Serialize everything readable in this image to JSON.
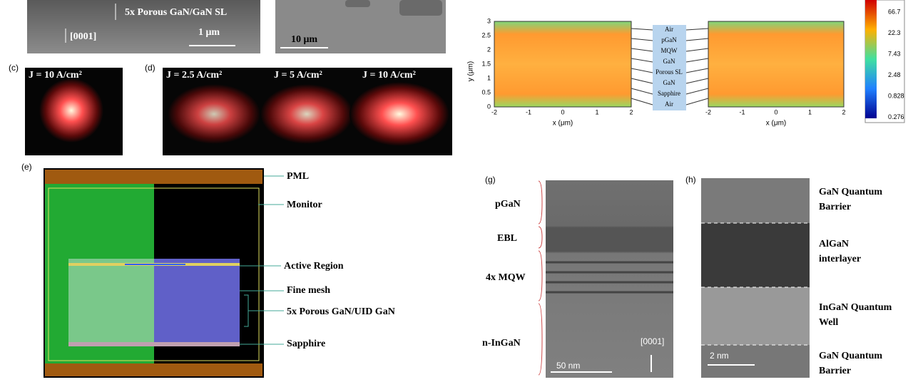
{
  "panel_a": {
    "title": "5x Porous GaN/GaN SL",
    "direction": "[0001]",
    "scale": "1 μm"
  },
  "panel_b": {
    "scale": "10 μm"
  },
  "panel_c": {
    "label": "(c)",
    "current": "J = 10 A/cm²"
  },
  "panel_d": {
    "label": "(d)",
    "currents": [
      "J = 2.5 A/cm²",
      "J = 5 A/cm²",
      "J = 10 A/cm²"
    ]
  },
  "simulation": {
    "y_label": "y (μm)",
    "x_label": "x (μm)",
    "yticks": [
      "3",
      "2.5",
      "2",
      "1.5",
      "1",
      "0.5",
      "0"
    ],
    "xticks": [
      "-2",
      "-1",
      "0",
      "1",
      "2"
    ],
    "layers": [
      "Air",
      "pGaN",
      "MQW",
      "GaN",
      "Porous SL",
      "GaN",
      "Sapphire",
      "Air"
    ],
    "colorbar": [
      "66.7",
      "22.3",
      "7.43",
      "2.48",
      "0.828",
      "0.276"
    ]
  },
  "panel_e": {
    "label": "(e)",
    "annotations": [
      "PML",
      "Monitor",
      "Active Region",
      "Fine mesh",
      "5x Porous GaN/UID GaN",
      "Sapphire"
    ]
  },
  "panel_g": {
    "label": "(g)",
    "layers": [
      "pGaN",
      "EBL",
      "4x MQW",
      "n-InGaN"
    ],
    "direction": "[0001]",
    "scale": "50 nm"
  },
  "panel_h": {
    "label": "(h)",
    "layers": [
      [
        "GaN Quantum",
        "Barrier"
      ],
      [
        "AlGaN",
        "interlayer"
      ],
      [
        "InGaN Quantum",
        "Well"
      ],
      [
        "GaN Quantum",
        "Barrier"
      ]
    ],
    "scale": "2 nm"
  }
}
